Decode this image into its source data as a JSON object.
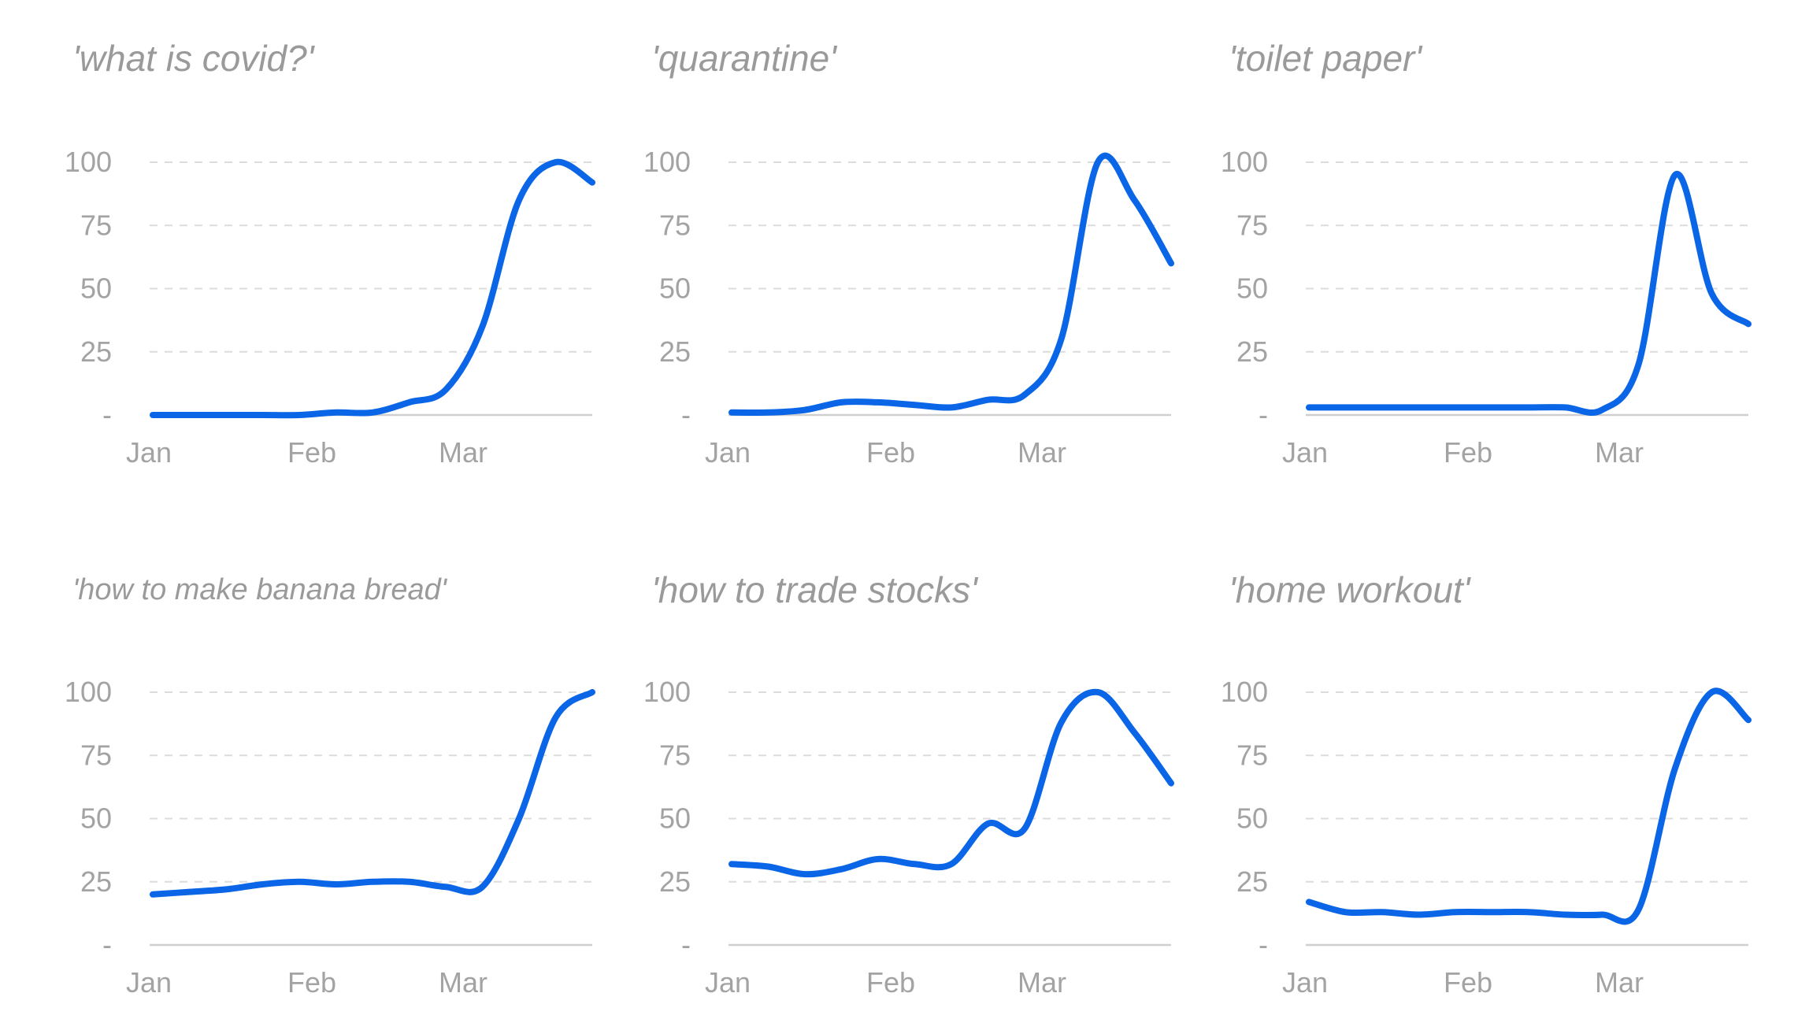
{
  "chart_data": [
    {
      "type": "line",
      "title": "'what is covid?'",
      "x_ticks": [
        "Jan",
        "Feb",
        "Mar"
      ],
      "y_ticks": [
        "-",
        "25",
        "50",
        "75",
        "100"
      ],
      "ylim": [
        0,
        100
      ],
      "grid": true,
      "x": [
        "Jan 1",
        "Jan 8",
        "Jan 15",
        "Jan 22",
        "Jan 29",
        "Feb 5",
        "Feb 12",
        "Feb 19",
        "Feb 26",
        "Mar 4",
        "Mar 11",
        "Mar 18",
        "Mar 25"
      ],
      "values": [
        0,
        0,
        0,
        0,
        0,
        1,
        1,
        5,
        10,
        35,
        85,
        100,
        92
      ]
    },
    {
      "type": "line",
      "title": "'quarantine'",
      "x_ticks": [
        "Jan",
        "Feb",
        "Mar"
      ],
      "y_ticks": [
        "-",
        "25",
        "50",
        "75",
        "100"
      ],
      "ylim": [
        0,
        100
      ],
      "grid": true,
      "x": [
        "Jan 1",
        "Jan 8",
        "Jan 15",
        "Jan 22",
        "Jan 29",
        "Feb 5",
        "Feb 12",
        "Feb 19",
        "Feb 26",
        "Mar 4",
        "Mar 11",
        "Mar 18",
        "Mar 25"
      ],
      "values": [
        1,
        1,
        2,
        5,
        5,
        4,
        3,
        6,
        8,
        30,
        100,
        85,
        60
      ]
    },
    {
      "type": "line",
      "title": "'toilet paper'",
      "x_ticks": [
        "Jan",
        "Feb",
        "Mar"
      ],
      "y_ticks": [
        "-",
        "25",
        "50",
        "75",
        "100"
      ],
      "ylim": [
        0,
        100
      ],
      "grid": true,
      "x": [
        "Jan 1",
        "Jan 8",
        "Jan 15",
        "Jan 22",
        "Jan 29",
        "Feb 5",
        "Feb 12",
        "Feb 19",
        "Feb 26",
        "Mar 4",
        "Mar 11",
        "Mar 18",
        "Mar 25"
      ],
      "values": [
        3,
        3,
        3,
        3,
        3,
        3,
        3,
        3,
        2,
        20,
        95,
        48,
        36
      ]
    },
    {
      "type": "line",
      "title": "'how to make banana bread'",
      "x_ticks": [
        "Jan",
        "Feb",
        "Mar"
      ],
      "y_ticks": [
        "-",
        "25",
        "50",
        "75",
        "100"
      ],
      "ylim": [
        0,
        100
      ],
      "grid": true,
      "x": [
        "Jan 1",
        "Jan 8",
        "Jan 15",
        "Jan 22",
        "Jan 29",
        "Feb 5",
        "Feb 12",
        "Feb 19",
        "Feb 26",
        "Mar 4",
        "Mar 11",
        "Mar 18",
        "Mar 25"
      ],
      "values": [
        20,
        21,
        22,
        24,
        25,
        24,
        25,
        25,
        23,
        23,
        50,
        90,
        100
      ]
    },
    {
      "type": "line",
      "title": "'how to trade stocks'",
      "x_ticks": [
        "Jan",
        "Feb",
        "Mar"
      ],
      "y_ticks": [
        "-",
        "25",
        "50",
        "75",
        "100"
      ],
      "ylim": [
        0,
        100
      ],
      "grid": true,
      "x": [
        "Jan 1",
        "Jan 8",
        "Jan 15",
        "Jan 22",
        "Jan 29",
        "Feb 5",
        "Feb 12",
        "Feb 19",
        "Feb 26",
        "Mar 4",
        "Mar 11",
        "Mar 18",
        "Mar 25"
      ],
      "values": [
        32,
        31,
        28,
        30,
        34,
        32,
        32,
        48,
        46,
        88,
        100,
        84,
        64
      ]
    },
    {
      "type": "line",
      "title": "'home workout'",
      "x_ticks": [
        "Jan",
        "Feb",
        "Mar"
      ],
      "y_ticks": [
        "-",
        "25",
        "50",
        "75",
        "100"
      ],
      "ylim": [
        0,
        100
      ],
      "grid": true,
      "x": [
        "Jan 1",
        "Jan 8",
        "Jan 15",
        "Jan 22",
        "Jan 29",
        "Feb 5",
        "Feb 12",
        "Feb 19",
        "Feb 26",
        "Mar 4",
        "Mar 11",
        "Mar 18",
        "Mar 25"
      ],
      "values": [
        17,
        13,
        13,
        12,
        13,
        13,
        13,
        12,
        12,
        14,
        70,
        100,
        89
      ]
    }
  ],
  "colors": {
    "line": "#0a66e6",
    "text": "#9a9a9a",
    "grid": "#dcdcdc"
  }
}
